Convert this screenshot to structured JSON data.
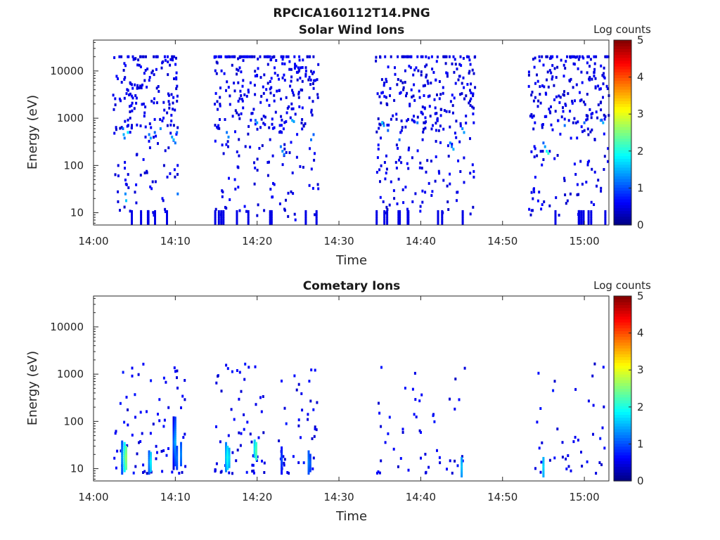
{
  "figure_title": "RPCICA160112T14.PNG",
  "colors": {
    "colormap": "jet",
    "axis": "#262626",
    "background": "#ffffff"
  },
  "chart_data": [
    {
      "type": "heatmap",
      "title": "Solar Wind Ions",
      "xlabel": "Time",
      "ylabel": "Energy (eV)",
      "x_ticks": [
        "14:00",
        "14:10",
        "14:20",
        "14:30",
        "14:40",
        "14:50",
        "15:00"
      ],
      "x_tick_values": [
        0,
        10,
        20,
        30,
        40,
        50,
        60
      ],
      "xlim_minutes_after_14_00": [
        0,
        63
      ],
      "y_scale": "log",
      "y_ticks": [
        "10",
        "100",
        "1000",
        "10000"
      ],
      "y_tick_values": [
        10,
        100,
        1000,
        10000
      ],
      "ylim": [
        5.5,
        45000
      ],
      "colorbar_label": "Log counts",
      "colorbar_ticks": [
        "0",
        "1",
        "2",
        "3",
        "4",
        "5"
      ],
      "clim": [
        0,
        5
      ],
      "grid": false,
      "activity_intervals": [
        [
          2.2,
          10.3
        ],
        [
          14.8,
          27.5
        ],
        [
          34.5,
          46.7
        ],
        [
          53.2,
          63
        ]
      ],
      "seed": 11,
      "cells": [
        [
          3.6,
          600,
          1.1
        ],
        [
          3.7,
          450,
          1.5
        ],
        [
          3.8,
          380,
          1.2
        ],
        [
          3.9,
          25,
          1.3
        ],
        [
          4.0,
          18,
          1.6
        ],
        [
          4.2,
          500,
          1.8
        ],
        [
          6.8,
          450,
          1.2
        ],
        [
          7.0,
          380,
          1.4
        ],
        [
          7.5,
          500,
          1.1
        ],
        [
          8.2,
          600,
          1.3
        ],
        [
          9.6,
          400,
          1.4
        ],
        [
          9.8,
          350,
          1.6
        ],
        [
          10.0,
          300,
          1.2
        ],
        [
          10.2,
          500,
          1.1
        ],
        [
          10.3,
          25,
          1.2
        ],
        [
          16.3,
          500,
          1.2
        ],
        [
          16.5,
          400,
          1.3
        ],
        [
          19.8,
          900,
          1.1
        ],
        [
          20.0,
          800,
          1.4
        ],
        [
          22.9,
          250,
          1.2
        ],
        [
          23.1,
          200,
          1.3
        ],
        [
          23.3,
          170,
          1.2
        ],
        [
          24.3,
          900,
          1.5
        ],
        [
          24.5,
          850,
          1.4
        ],
        [
          26.6,
          350,
          1.2
        ],
        [
          26.9,
          450,
          1.1
        ],
        [
          35.3,
          800,
          1.6
        ],
        [
          35.5,
          700,
          1.4
        ],
        [
          36.0,
          550,
          1.1
        ],
        [
          37.4,
          350,
          1.1
        ],
        [
          39.6,
          800,
          1.2
        ],
        [
          43.6,
          300,
          1.3
        ],
        [
          43.8,
          250,
          1.2
        ],
        [
          44.0,
          220,
          1.5
        ],
        [
          45.1,
          600,
          1.3
        ],
        [
          45.3,
          500,
          1.4
        ],
        [
          55.0,
          300,
          1.1
        ],
        [
          55.2,
          250,
          1.4
        ],
        [
          55.4,
          200,
          1.9
        ],
        [
          55.6,
          180,
          2.1
        ],
        [
          57.6,
          700,
          1.2
        ],
        [
          60.0,
          800,
          1.1
        ],
        [
          62.0,
          900,
          1.3
        ],
        [
          62.3,
          800,
          1.5
        ]
      ]
    },
    {
      "type": "heatmap",
      "title": "Cometary Ions",
      "xlabel": "Time",
      "ylabel": "Energy (eV)",
      "x_ticks": [
        "14:00",
        "14:10",
        "14:20",
        "14:30",
        "14:40",
        "14:50",
        "15:00"
      ],
      "x_tick_values": [
        0,
        10,
        20,
        30,
        40,
        50,
        60
      ],
      "xlim_minutes_after_14_00": [
        0,
        63
      ],
      "y_scale": "log",
      "y_ticks": [
        "10",
        "100",
        "1000",
        "10000"
      ],
      "y_tick_values": [
        10,
        100,
        1000,
        10000
      ],
      "ylim": [
        5.5,
        45000
      ],
      "colorbar_label": "Log counts",
      "colorbar_ticks": [
        "0",
        "1",
        "2",
        "3",
        "4",
        "5"
      ],
      "clim": [
        0,
        5
      ],
      "grid": false,
      "seed": 29,
      "columns": [
        {
          "x": 3.5,
          "lo": 8,
          "hi": 40,
          "v": 1.4
        },
        {
          "x": 3.8,
          "lo": 9,
          "hi": 35,
          "v": 2.2
        },
        {
          "x": 4.0,
          "lo": 10,
          "hi": 30,
          "v": 2.6
        },
        {
          "x": 6.8,
          "lo": 8,
          "hi": 25,
          "v": 1.3
        },
        {
          "x": 7.0,
          "lo": 9,
          "hi": 22,
          "v": 1.8
        },
        {
          "x": 9.8,
          "lo": 10,
          "hi": 130,
          "v": 1.1
        },
        {
          "x": 10.0,
          "lo": 12,
          "hi": 120,
          "v": 1.5
        },
        {
          "x": 10.2,
          "lo": 10,
          "hi": 30,
          "v": 1.2
        },
        {
          "x": 10.7,
          "lo": 12,
          "hi": 35,
          "v": 1.3
        },
        {
          "x": 16.2,
          "lo": 9,
          "hi": 35,
          "v": 1.6
        },
        {
          "x": 16.4,
          "lo": 10,
          "hi": 30,
          "v": 2.0
        },
        {
          "x": 16.6,
          "lo": 11,
          "hi": 28,
          "v": 1.7
        },
        {
          "x": 19.7,
          "lo": 18,
          "hi": 40,
          "v": 1.8
        },
        {
          "x": 19.9,
          "lo": 16,
          "hi": 35,
          "v": 2.3
        },
        {
          "x": 23.0,
          "lo": 8,
          "hi": 30,
          "v": 1.0
        },
        {
          "x": 26.3,
          "lo": 8,
          "hi": 25,
          "v": 1.3
        },
        {
          "x": 26.5,
          "lo": 9,
          "hi": 20,
          "v": 1.1
        },
        {
          "x": 45.0,
          "lo": 7,
          "hi": 18,
          "v": 1.6
        },
        {
          "x": 55.0,
          "lo": 7,
          "hi": 18,
          "v": 1.7
        }
      ],
      "scatter_ranges": [
        [
          2.5,
          11.5,
          70
        ],
        [
          14.8,
          21,
          60
        ],
        [
          22.5,
          27.5,
          40
        ],
        [
          34.5,
          40.5,
          28
        ],
        [
          40.5,
          47,
          22
        ],
        [
          53.5,
          63,
          40
        ]
      ]
    }
  ]
}
